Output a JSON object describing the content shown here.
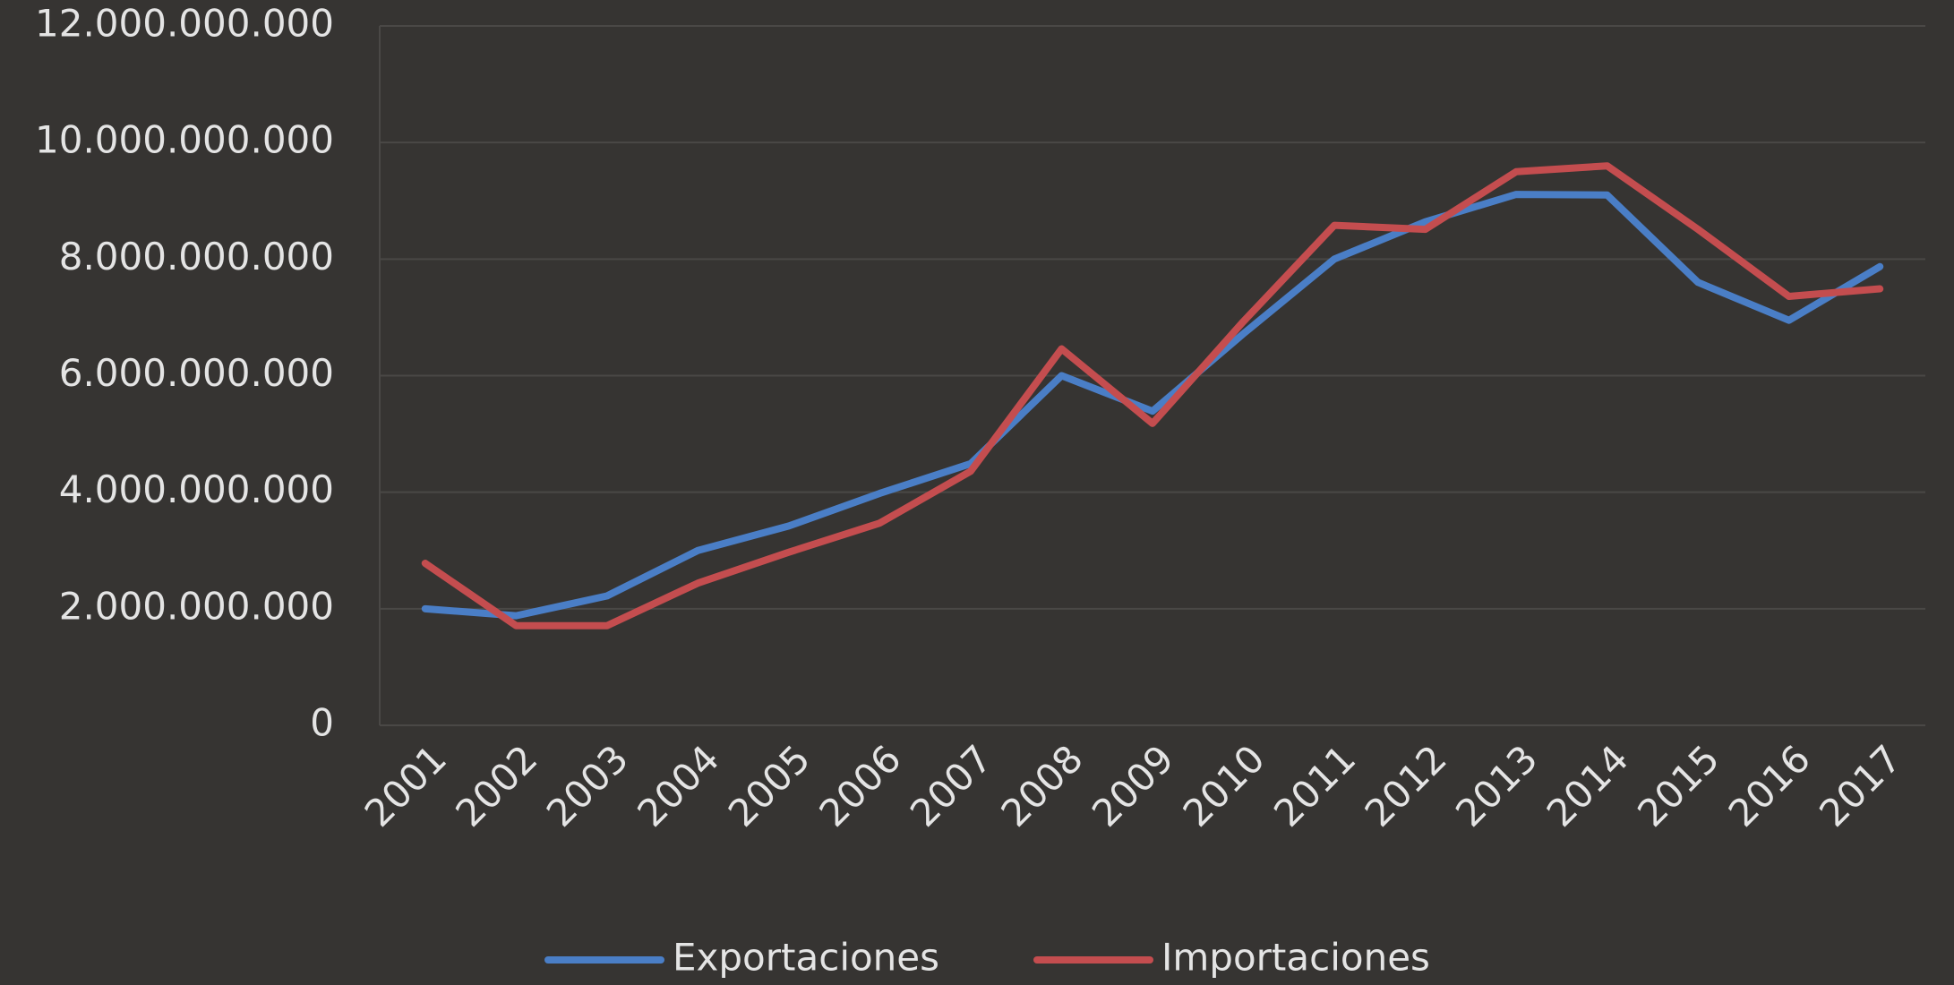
{
  "chart_data": {
    "type": "line",
    "categories": [
      "2001",
      "2002",
      "2003",
      "2004",
      "2005",
      "2006",
      "2007",
      "2008",
      "2009",
      "2010",
      "2011",
      "2012",
      "2013",
      "2014",
      "2015",
      "2016",
      "2017"
    ],
    "series": [
      {
        "name": "Exportaciones",
        "color": "#4a7ec6",
        "values": [
          2000000000,
          1880000000,
          2220000000,
          3000000000,
          3420000000,
          3980000000,
          4490000000,
          6000000000,
          5390000000,
          6720000000,
          8000000000,
          8640000000,
          9110000000,
          9100000000,
          7600000000,
          6950000000,
          7870000000
        ]
      },
      {
        "name": "Importaciones",
        "color": "#c44d4f",
        "values": [
          2780000000,
          1710000000,
          1710000000,
          2440000000,
          2970000000,
          3470000000,
          4360000000,
          6460000000,
          5180000000,
          6930000000,
          8580000000,
          8510000000,
          9500000000,
          9600000000,
          8510000000,
          7360000000,
          7490000000
        ]
      }
    ],
    "ylim": [
      0,
      12000000000
    ],
    "yticks": [
      0,
      {
        "value": 2000000000,
        "label": "2.000.000.000"
      },
      {
        "value": 4000000000,
        "label": "4.000.000.000"
      },
      {
        "value": 6000000000,
        "label": "6.000.000.000"
      },
      {
        "value": 8000000000,
        "label": "8.000.000.000"
      },
      {
        "value": 10000000000,
        "label": "10.000.000.000"
      },
      {
        "value": 12000000000,
        "label": "12.000.000.000"
      }
    ],
    "grid": true,
    "legend": "bottom"
  }
}
